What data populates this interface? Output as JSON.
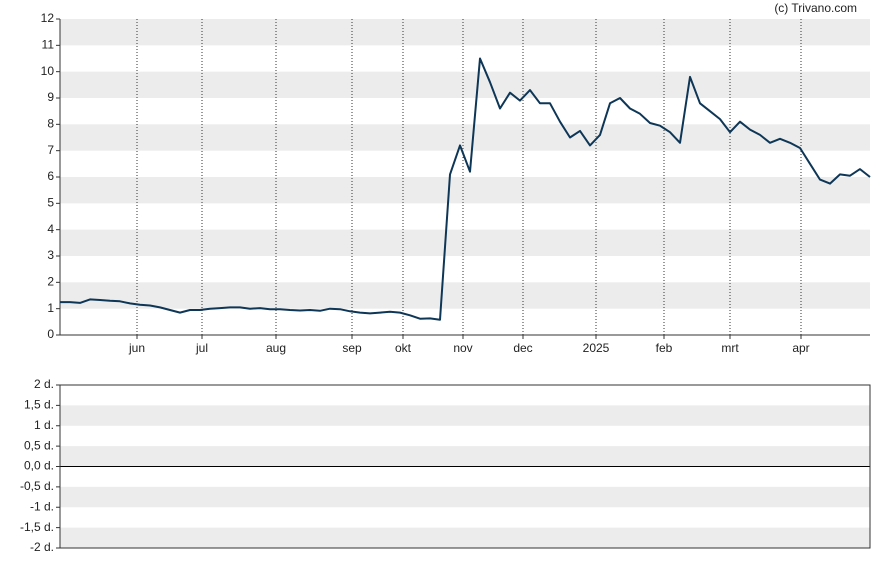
{
  "watermark": "(c) Trivano.com",
  "chart_data": [
    {
      "type": "line",
      "series": [
        {
          "color": "#0e3656",
          "values": [
            1.25,
            1.25,
            1.22,
            1.35,
            1.33,
            1.3,
            1.28,
            1.2,
            1.15,
            1.12,
            1.05,
            0.95,
            0.85,
            0.95,
            0.95,
            1.0,
            1.02,
            1.05,
            1.05,
            1.0,
            1.02,
            0.98,
            0.98,
            0.95,
            0.93,
            0.95,
            0.92,
            1.0,
            0.98,
            0.9,
            0.85,
            0.82,
            0.85,
            0.88,
            0.85,
            0.75,
            0.62,
            0.63,
            0.58,
            6.1,
            7.2,
            6.2,
            10.5,
            9.6,
            8.6,
            9.2,
            8.9,
            9.3,
            8.8,
            8.8,
            8.1,
            7.5,
            7.75,
            7.2,
            7.6,
            8.8,
            9.0,
            8.6,
            8.4,
            8.05,
            7.95,
            7.7,
            7.3,
            9.8,
            8.8,
            8.5,
            8.2,
            7.7,
            8.1,
            7.8,
            7.6,
            7.3,
            7.45,
            7.3,
            7.1,
            6.5,
            5.9,
            5.75,
            6.1,
            6.05,
            6.3,
            6.0
          ]
        }
      ],
      "xlim": [
        0,
        81
      ],
      "xticks": [
        {
          "value": 7.7,
          "label": "jun"
        },
        {
          "value": 14.2,
          "label": "jul"
        },
        {
          "value": 21.6,
          "label": "aug"
        },
        {
          "value": 29.2,
          "label": "sep"
        },
        {
          "value": 34.3,
          "label": "okt"
        },
        {
          "value": 40.3,
          "label": "nov"
        },
        {
          "value": 46.3,
          "label": "dec"
        },
        {
          "value": 53.6,
          "label": "2025"
        },
        {
          "value": 60.4,
          "label": "feb"
        },
        {
          "value": 67,
          "label": "mrt"
        },
        {
          "value": 74.1,
          "label": "apr"
        }
      ],
      "ylim": [
        0,
        12
      ],
      "yticks": [
        0,
        1,
        2,
        3,
        4,
        5,
        6,
        7,
        8,
        9,
        10,
        11,
        12
      ],
      "grid": true
    },
    {
      "type": "line",
      "series": [],
      "ylim": [
        -2,
        2
      ],
      "yticks": [
        {
          "value": -2,
          "label": "-2 d."
        },
        {
          "value": -1.5,
          "label": "-1,5 d."
        },
        {
          "value": -1,
          "label": "-1 d."
        },
        {
          "value": -0.5,
          "label": "-0,5 d."
        },
        {
          "value": 0,
          "label": "0,0 d."
        },
        {
          "value": 0.5,
          "label": "0,5 d."
        },
        {
          "value": 1,
          "label": "1 d."
        },
        {
          "value": 1.5,
          "label": "1,5 d."
        },
        {
          "value": 2,
          "label": "2 d."
        }
      ],
      "grid": true
    }
  ]
}
